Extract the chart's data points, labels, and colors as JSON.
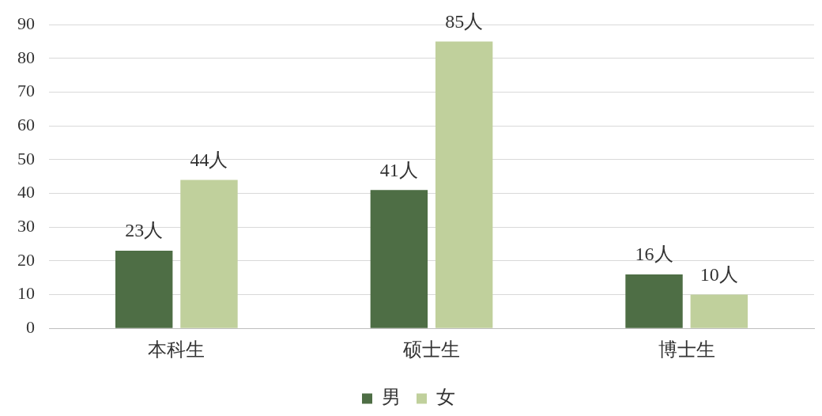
{
  "chart_data": {
    "type": "bar",
    "categories": [
      "本科生",
      "硕士生",
      "博士生"
    ],
    "series": [
      {
        "name": "男",
        "color": "#4e6e45",
        "values": [
          23,
          41,
          16
        ],
        "value_labels": [
          "23人",
          "41人",
          "16人"
        ]
      },
      {
        "name": "女",
        "color": "#c0d09c",
        "values": [
          44,
          85,
          10
        ],
        "value_labels": [
          "44人",
          "85人",
          "10人"
        ]
      }
    ],
    "ylim": [
      0,
      90
    ],
    "yticks": [
      0,
      10,
      20,
      30,
      40,
      50,
      60,
      70,
      80,
      90
    ],
    "grid": "y",
    "legend": "bottom"
  }
}
